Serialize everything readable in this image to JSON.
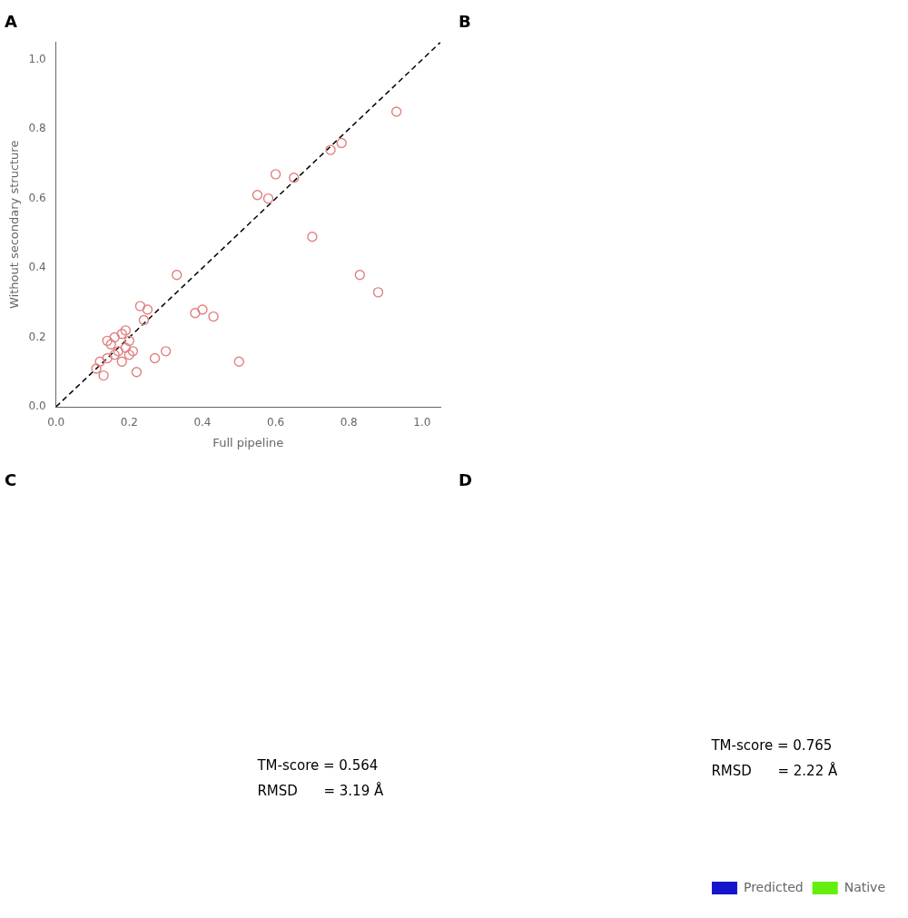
{
  "chart_data": [
    {
      "type": "scatter",
      "title": "A",
      "x_label": "Full pipeline",
      "y_label": "Without secondary structure",
      "series": [
        {
          "type": "scatter",
          "color": "#e08080",
          "marker": "circle",
          "x": [
            0.11,
            0.12,
            0.13,
            0.14,
            0.14,
            0.15,
            0.16,
            0.16,
            0.17,
            0.18,
            0.18,
            0.19,
            0.19,
            0.2,
            0.2,
            0.21,
            0.22,
            0.23,
            0.24,
            0.25,
            0.27,
            0.3,
            0.33,
            0.38,
            0.4,
            0.43,
            0.5,
            0.55,
            0.58,
            0.6,
            0.65,
            0.7,
            0.75,
            0.78,
            0.83,
            0.88,
            0.93
          ],
          "values": [
            0.11,
            0.13,
            0.09,
            0.14,
            0.19,
            0.18,
            0.15,
            0.2,
            0.16,
            0.13,
            0.21,
            0.17,
            0.22,
            0.15,
            0.19,
            0.16,
            0.1,
            0.29,
            0.25,
            0.28,
            0.14,
            0.16,
            0.38,
            0.27,
            0.28,
            0.26,
            0.13,
            0.61,
            0.6,
            0.67,
            0.66,
            0.49,
            0.74,
            0.76,
            0.38,
            0.33,
            0.85
          ]
        },
        {
          "type": "line",
          "color": "#000000",
          "line_style": "dashed",
          "x": [
            0,
            1.05
          ],
          "values": [
            0,
            1.05
          ]
        }
      ],
      "xlim": [
        0.0,
        1.05
      ],
      "ylim": [
        0.0,
        1.05
      ],
      "xticks": [
        {
          "value": 0.0,
          "label": "0.0"
        },
        {
          "value": 0.2,
          "label": "0.2"
        },
        {
          "value": 0.4,
          "label": "0.4"
        },
        {
          "value": 0.6,
          "label": "0.6"
        },
        {
          "value": 0.8,
          "label": "0.8"
        },
        {
          "value": 1.0,
          "label": "1.0"
        }
      ],
      "yticks": [
        {
          "value": 0.0,
          "label": "0.0"
        },
        {
          "value": 0.2,
          "label": "0.2"
        },
        {
          "value": 0.4,
          "label": "0.4"
        },
        {
          "value": 0.6,
          "label": "0.6"
        },
        {
          "value": 0.8,
          "label": "0.8"
        },
        {
          "value": 1.0,
          "label": "1.0"
        }
      ],
      "grid": false
    },
    {
      "type": "blank",
      "title": "B"
    },
    {
      "type": "blank",
      "title": "C",
      "annotations": [
        "TM-score = 0.564",
        "RMSD      = 3.19 Å"
      ]
    },
    {
      "type": "blank",
      "title": "D",
      "annotations": [
        "TM-score = 0.765",
        "RMSD      = 2.22 Å"
      ],
      "series": [
        {
          "name": "Predicted",
          "color": "#1515cc"
        },
        {
          "name": "Native",
          "color": "#66ee11"
        }
      ],
      "legend": "lower right"
    }
  ]
}
